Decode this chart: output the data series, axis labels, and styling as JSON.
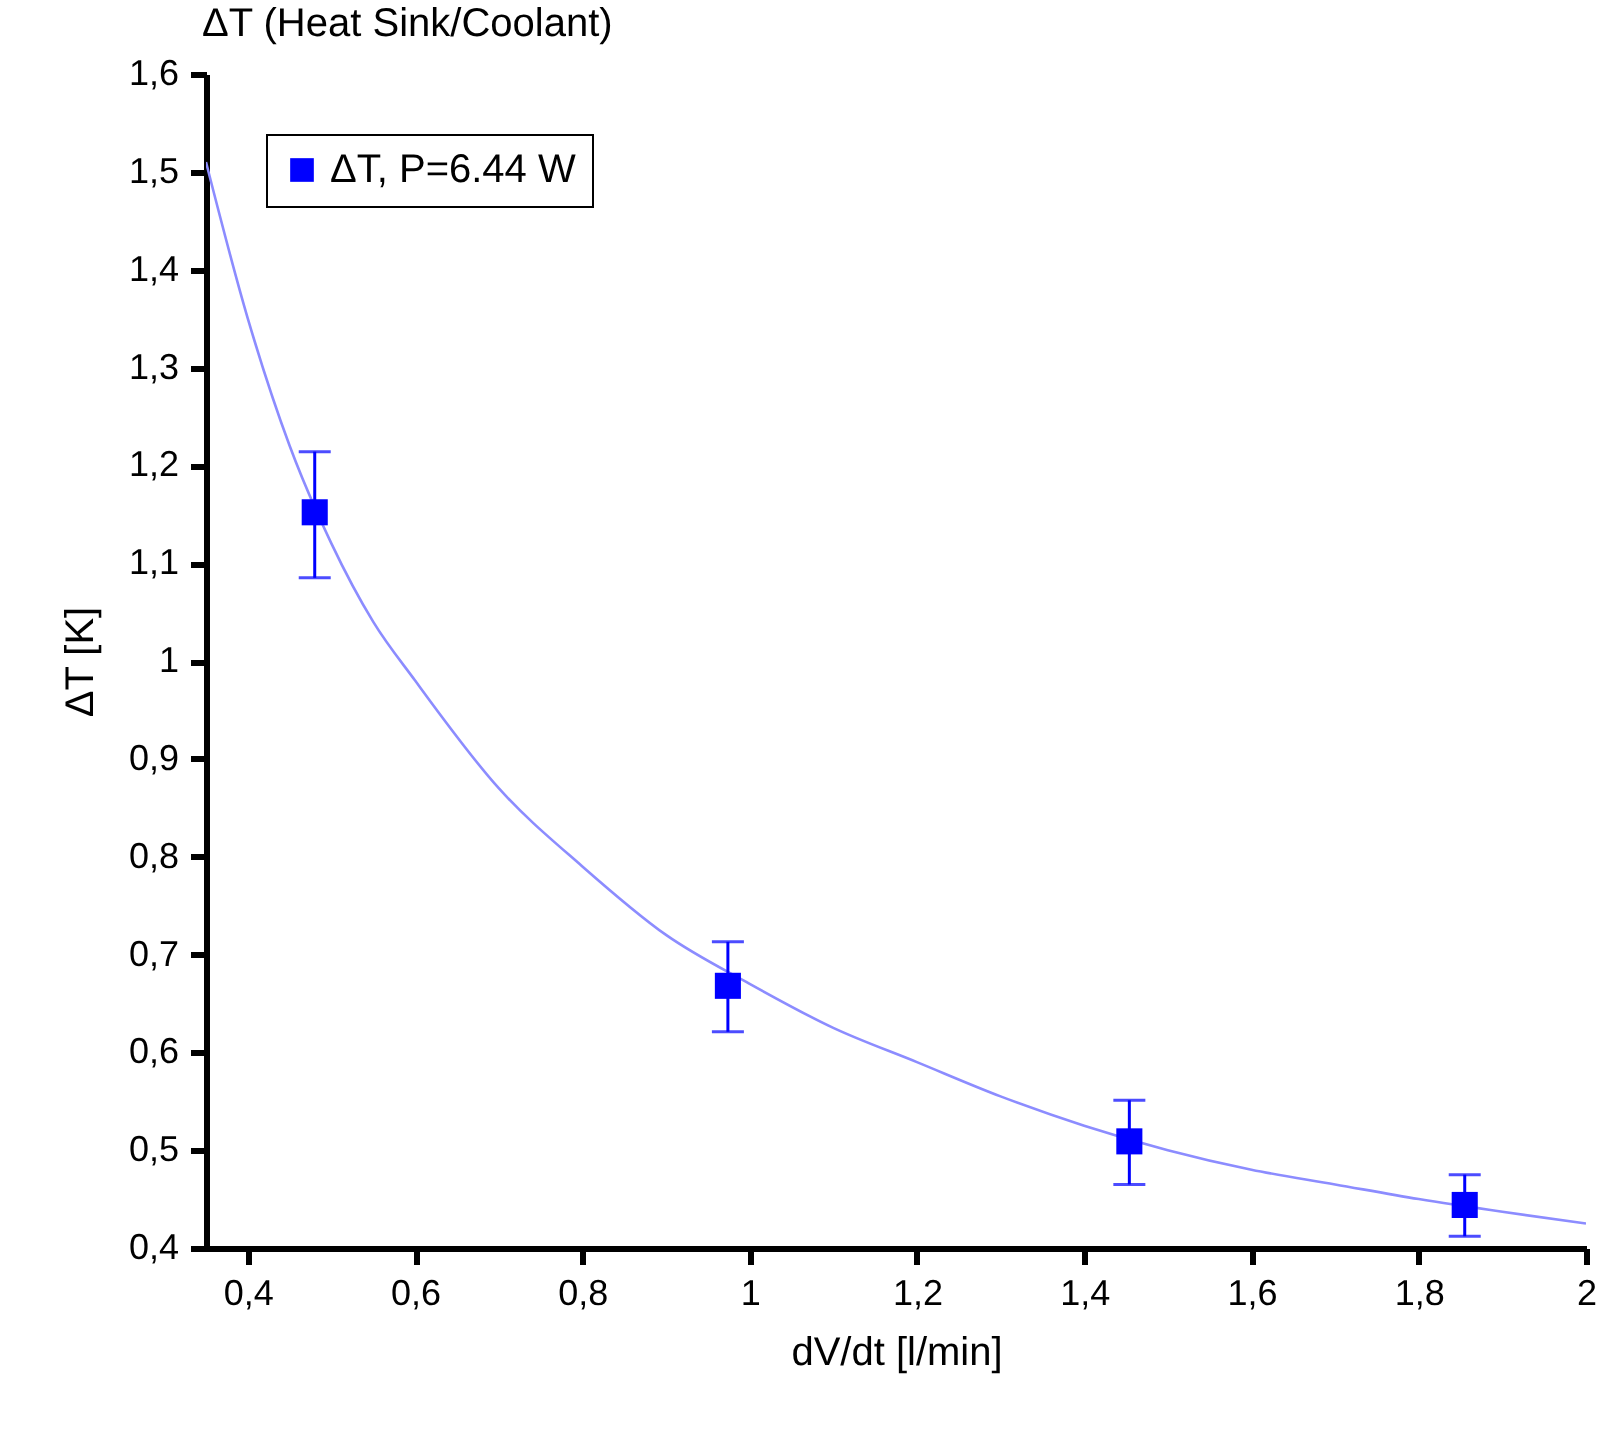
{
  "chart_data": {
    "type": "scatter",
    "title": "ΔT (Heat Sink/Coolant)",
    "xlabel": "dV/dt [l/min]",
    "ylabel": "ΔT [K]",
    "xlim": [
      0.35,
      2.0
    ],
    "ylim": [
      0.4,
      1.6
    ],
    "xticks": [
      {
        "value": 0.4,
        "label": "0,4"
      },
      {
        "value": 0.6,
        "label": "0,6"
      },
      {
        "value": 0.8,
        "label": "0,8"
      },
      1,
      {
        "value": 1.2,
        "label": "1,2"
      },
      {
        "value": 1.4,
        "label": "1,4"
      },
      {
        "value": 1.6,
        "label": "1,6"
      },
      {
        "value": 1.8,
        "label": "1,8"
      },
      2
    ],
    "yticks": [
      {
        "value": 0.4,
        "label": "0,4"
      },
      {
        "value": 0.5,
        "label": "0,5"
      },
      {
        "value": 0.6,
        "label": "0,6"
      },
      {
        "value": 0.7,
        "label": "0,7"
      },
      {
        "value": 0.8,
        "label": "0,8"
      },
      {
        "value": 0.9,
        "label": "0,9"
      },
      1,
      {
        "value": 1.1,
        "label": "1,1"
      },
      {
        "value": 1.2,
        "label": "1,2"
      },
      {
        "value": 1.3,
        "label": "1,3"
      },
      {
        "value": 1.4,
        "label": "1,4"
      },
      {
        "value": 1.5,
        "label": "1,5"
      },
      {
        "value": 1.6,
        "label": "1,6"
      }
    ],
    "grid": false,
    "legend": "top left",
    "marker": "square",
    "series": [
      {
        "name": "ΔT, P=6.44 W",
        "color": "#0000ff",
        "x": [
          0.48,
          0.974,
          1.454,
          1.855
        ],
        "values": [
          1.152,
          0.668,
          0.509,
          0.444
        ],
        "errors": [
          [
            1.085,
            1.214
          ],
          [
            0.621,
            0.713
          ],
          [
            0.465,
            0.551
          ],
          [
            0.412,
            0.475
          ]
        ]
      },
      {
        "type": "line",
        "marker": "none",
        "color": "#8c8cff",
        "x": [
          0.35,
          0.4,
          0.45,
          0.5,
          0.55,
          0.6,
          0.7,
          0.8,
          0.9,
          1.0,
          1.1,
          1.2,
          1.3,
          1.4,
          1.5,
          1.6,
          1.7,
          1.8,
          1.9,
          2.0
        ],
        "values": [
          1.51,
          1.35,
          1.22,
          1.12,
          1.04,
          0.98,
          0.87,
          0.79,
          0.72,
          0.67,
          0.625,
          0.59,
          0.555,
          0.525,
          0.5,
          0.48,
          0.465,
          0.45,
          0.437,
          0.425
        ]
      }
    ]
  }
}
